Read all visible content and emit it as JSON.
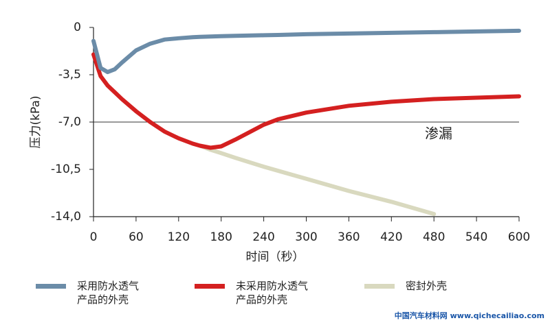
{
  "chart_data": {
    "type": "line",
    "y_label": "压力(kPa)",
    "x_label": "时间（秒）",
    "x": [
      0,
      10,
      20,
      30,
      40,
      60,
      80,
      100,
      120,
      140,
      150,
      165,
      180,
      200,
      240,
      260,
      300,
      360,
      420,
      480,
      540,
      600
    ],
    "series": [
      {
        "name": "采用防水透气\n产品的外壳",
        "color": "#6b8ca8",
        "values": [
          -1.0,
          -3.0,
          -3.3,
          -3.1,
          -2.6,
          -1.7,
          -1.2,
          -0.9,
          -0.8,
          -0.72,
          -0.7,
          -0.67,
          -0.65,
          -0.62,
          -0.58,
          -0.56,
          -0.5,
          -0.45,
          -0.4,
          -0.35,
          -0.3,
          -0.25
        ]
      },
      {
        "name": "未采用防水透气\n产品的外壳",
        "color": "#d42020",
        "values": [
          -2.0,
          -3.6,
          -4.3,
          -4.8,
          -5.3,
          -6.2,
          -7.0,
          -7.7,
          -8.2,
          -8.6,
          -8.75,
          -8.9,
          -8.8,
          -8.3,
          -7.2,
          -6.8,
          -6.3,
          -5.8,
          -5.5,
          -5.3,
          -5.2,
          -5.1
        ]
      },
      {
        "name": "密封外壳",
        "color": "#d9d9bf",
        "values": [
          null,
          null,
          null,
          null,
          null,
          null,
          null,
          null,
          null,
          null,
          -8.75,
          -9.05,
          -9.3,
          -9.65,
          -10.3,
          -10.6,
          -11.2,
          -12.1,
          -12.9,
          -13.8,
          null,
          null
        ]
      }
    ],
    "xlim": [
      0,
      600
    ],
    "xticks": [
      0,
      60,
      120,
      180,
      240,
      300,
      360,
      420,
      480,
      540,
      600
    ],
    "ylim": [
      -14,
      0
    ],
    "yticks": [
      {
        "value": -14,
        "label": "-14,0"
      },
      {
        "value": -10.5,
        "label": "-10,5"
      },
      {
        "value": -7,
        "label": "-7,0"
      },
      {
        "value": -3.5,
        "label": "-3,5"
      },
      0
    ],
    "threshold": {
      "value": -7,
      "label": "渗漏"
    },
    "watermark": "中国汽车材料网 www.qichecailiao.com"
  }
}
